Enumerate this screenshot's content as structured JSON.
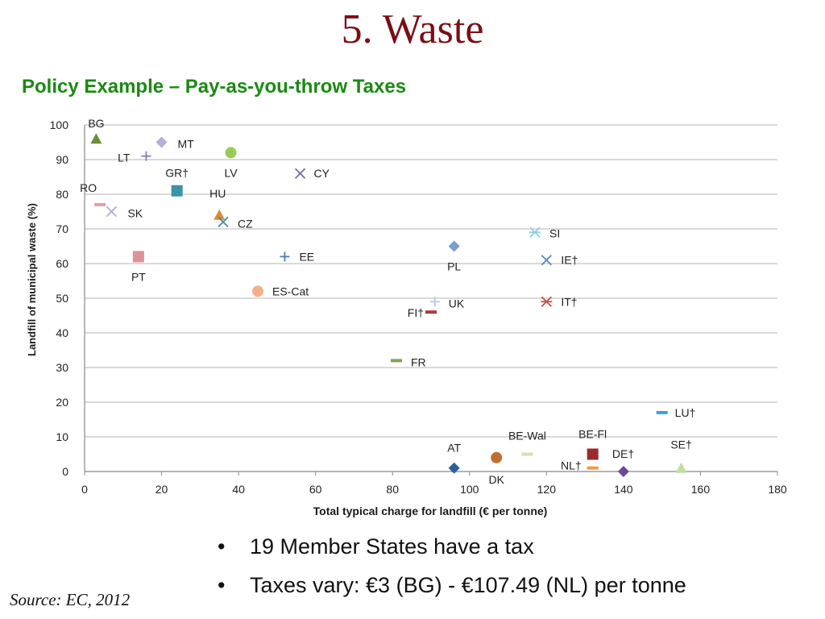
{
  "slide": {
    "title": "5. Waste",
    "subtitle": "Policy Example – Pay-as-you-throw Taxes",
    "bullets": [
      "19 Member States have a tax",
      "Taxes vary: €3 (BG) - €107.49 (NL) per tonne"
    ],
    "bullet_glyph": "•",
    "source": "Source: EC, 2012"
  },
  "chart_data": {
    "type": "scatter",
    "title": "",
    "xlabel": "Total typical charge for landfill (€ per tonne)",
    "ylabel": "Landfill of municipal waste (%)",
    "xlim": [
      0,
      180
    ],
    "ylim": [
      0,
      100
    ],
    "xticks": [
      0,
      20,
      40,
      60,
      80,
      100,
      120,
      140,
      160,
      180
    ],
    "yticks": [
      0,
      10,
      20,
      30,
      40,
      50,
      60,
      70,
      80,
      90,
      100
    ],
    "grid": "horizontal",
    "points": [
      {
        "label": "BG",
        "x": 3,
        "y": 96,
        "marker": "triangle",
        "color": "#6a8f3c"
      },
      {
        "label": "MT",
        "x": 20,
        "y": 95,
        "marker": "diamond",
        "color": "#b9aed4"
      },
      {
        "label": "LT",
        "x": 16,
        "y": 91,
        "marker": "plus",
        "color": "#8b78c4"
      },
      {
        "label": "LV",
        "x": 38,
        "y": 92,
        "marker": "circle",
        "color": "#9acb5a"
      },
      {
        "label": "GR†",
        "x": 24,
        "y": 81,
        "marker": "square",
        "color": "#3a93a8"
      },
      {
        "label": "CY",
        "x": 56,
        "y": 86,
        "marker": "x",
        "color": "#7b6aa8"
      },
      {
        "label": "RO",
        "x": 4,
        "y": 77,
        "marker": "dash",
        "color": "#e0a0a6"
      },
      {
        "label": "SK",
        "x": 7,
        "y": 75,
        "marker": "x",
        "color": "#b6a8cf"
      },
      {
        "label": "HU",
        "x": 35,
        "y": 74,
        "marker": "triangle",
        "color": "#e08a3a"
      },
      {
        "label": "CZ",
        "x": 36,
        "y": 72,
        "marker": "x",
        "color": "#3d8ca3"
      },
      {
        "label": "PT",
        "x": 14,
        "y": 62,
        "marker": "square",
        "color": "#d99498"
      },
      {
        "label": "EE",
        "x": 52,
        "y": 62,
        "marker": "plus",
        "color": "#4f7bc0"
      },
      {
        "label": "ES-Cat",
        "x": 45,
        "y": 52,
        "marker": "circle",
        "color": "#f5b08a"
      },
      {
        "label": "PL",
        "x": 96,
        "y": 65,
        "marker": "diamond",
        "color": "#7a9ccf"
      },
      {
        "label": "SI",
        "x": 117,
        "y": 69,
        "marker": "star",
        "color": "#8fcde0"
      },
      {
        "label": "IE†",
        "x": 120,
        "y": 61,
        "marker": "x",
        "color": "#5a86b8"
      },
      {
        "label": "UK",
        "x": 91,
        "y": 49,
        "marker": "plus",
        "color": "#b5c9e6"
      },
      {
        "label": "IT†",
        "x": 120,
        "y": 49,
        "marker": "star",
        "color": "#c0504d"
      },
      {
        "label": "FI†",
        "x": 90,
        "y": 46,
        "marker": "dash",
        "color": "#b0363a"
      },
      {
        "label": "FR",
        "x": 81,
        "y": 32,
        "marker": "dash",
        "color": "#7ea64a"
      },
      {
        "label": "LU†",
        "x": 150,
        "y": 17,
        "marker": "dash",
        "color": "#3aa3c8"
      },
      {
        "label": "AT",
        "x": 96,
        "y": 1,
        "marker": "diamond",
        "color": "#2f5f9a"
      },
      {
        "label": "DK",
        "x": 107,
        "y": 4,
        "marker": "circle",
        "color": "#c0702e"
      },
      {
        "label": "BE-Wal",
        "x": 115,
        "y": 5,
        "marker": "dash",
        "color": "#d4e3b4"
      },
      {
        "label": "BE-Fl",
        "x": 132,
        "y": 5,
        "marker": "square",
        "color": "#9a2a2e"
      },
      {
        "label": "NL†",
        "x": 132,
        "y": 1,
        "marker": "dash",
        "color": "#f09a3e"
      },
      {
        "label": "DE†",
        "x": 140,
        "y": 0,
        "marker": "diamond",
        "color": "#6b4a9a"
      },
      {
        "label": "SE†",
        "x": 155,
        "y": 1,
        "marker": "triangle",
        "color": "#bfe0a0"
      }
    ]
  }
}
